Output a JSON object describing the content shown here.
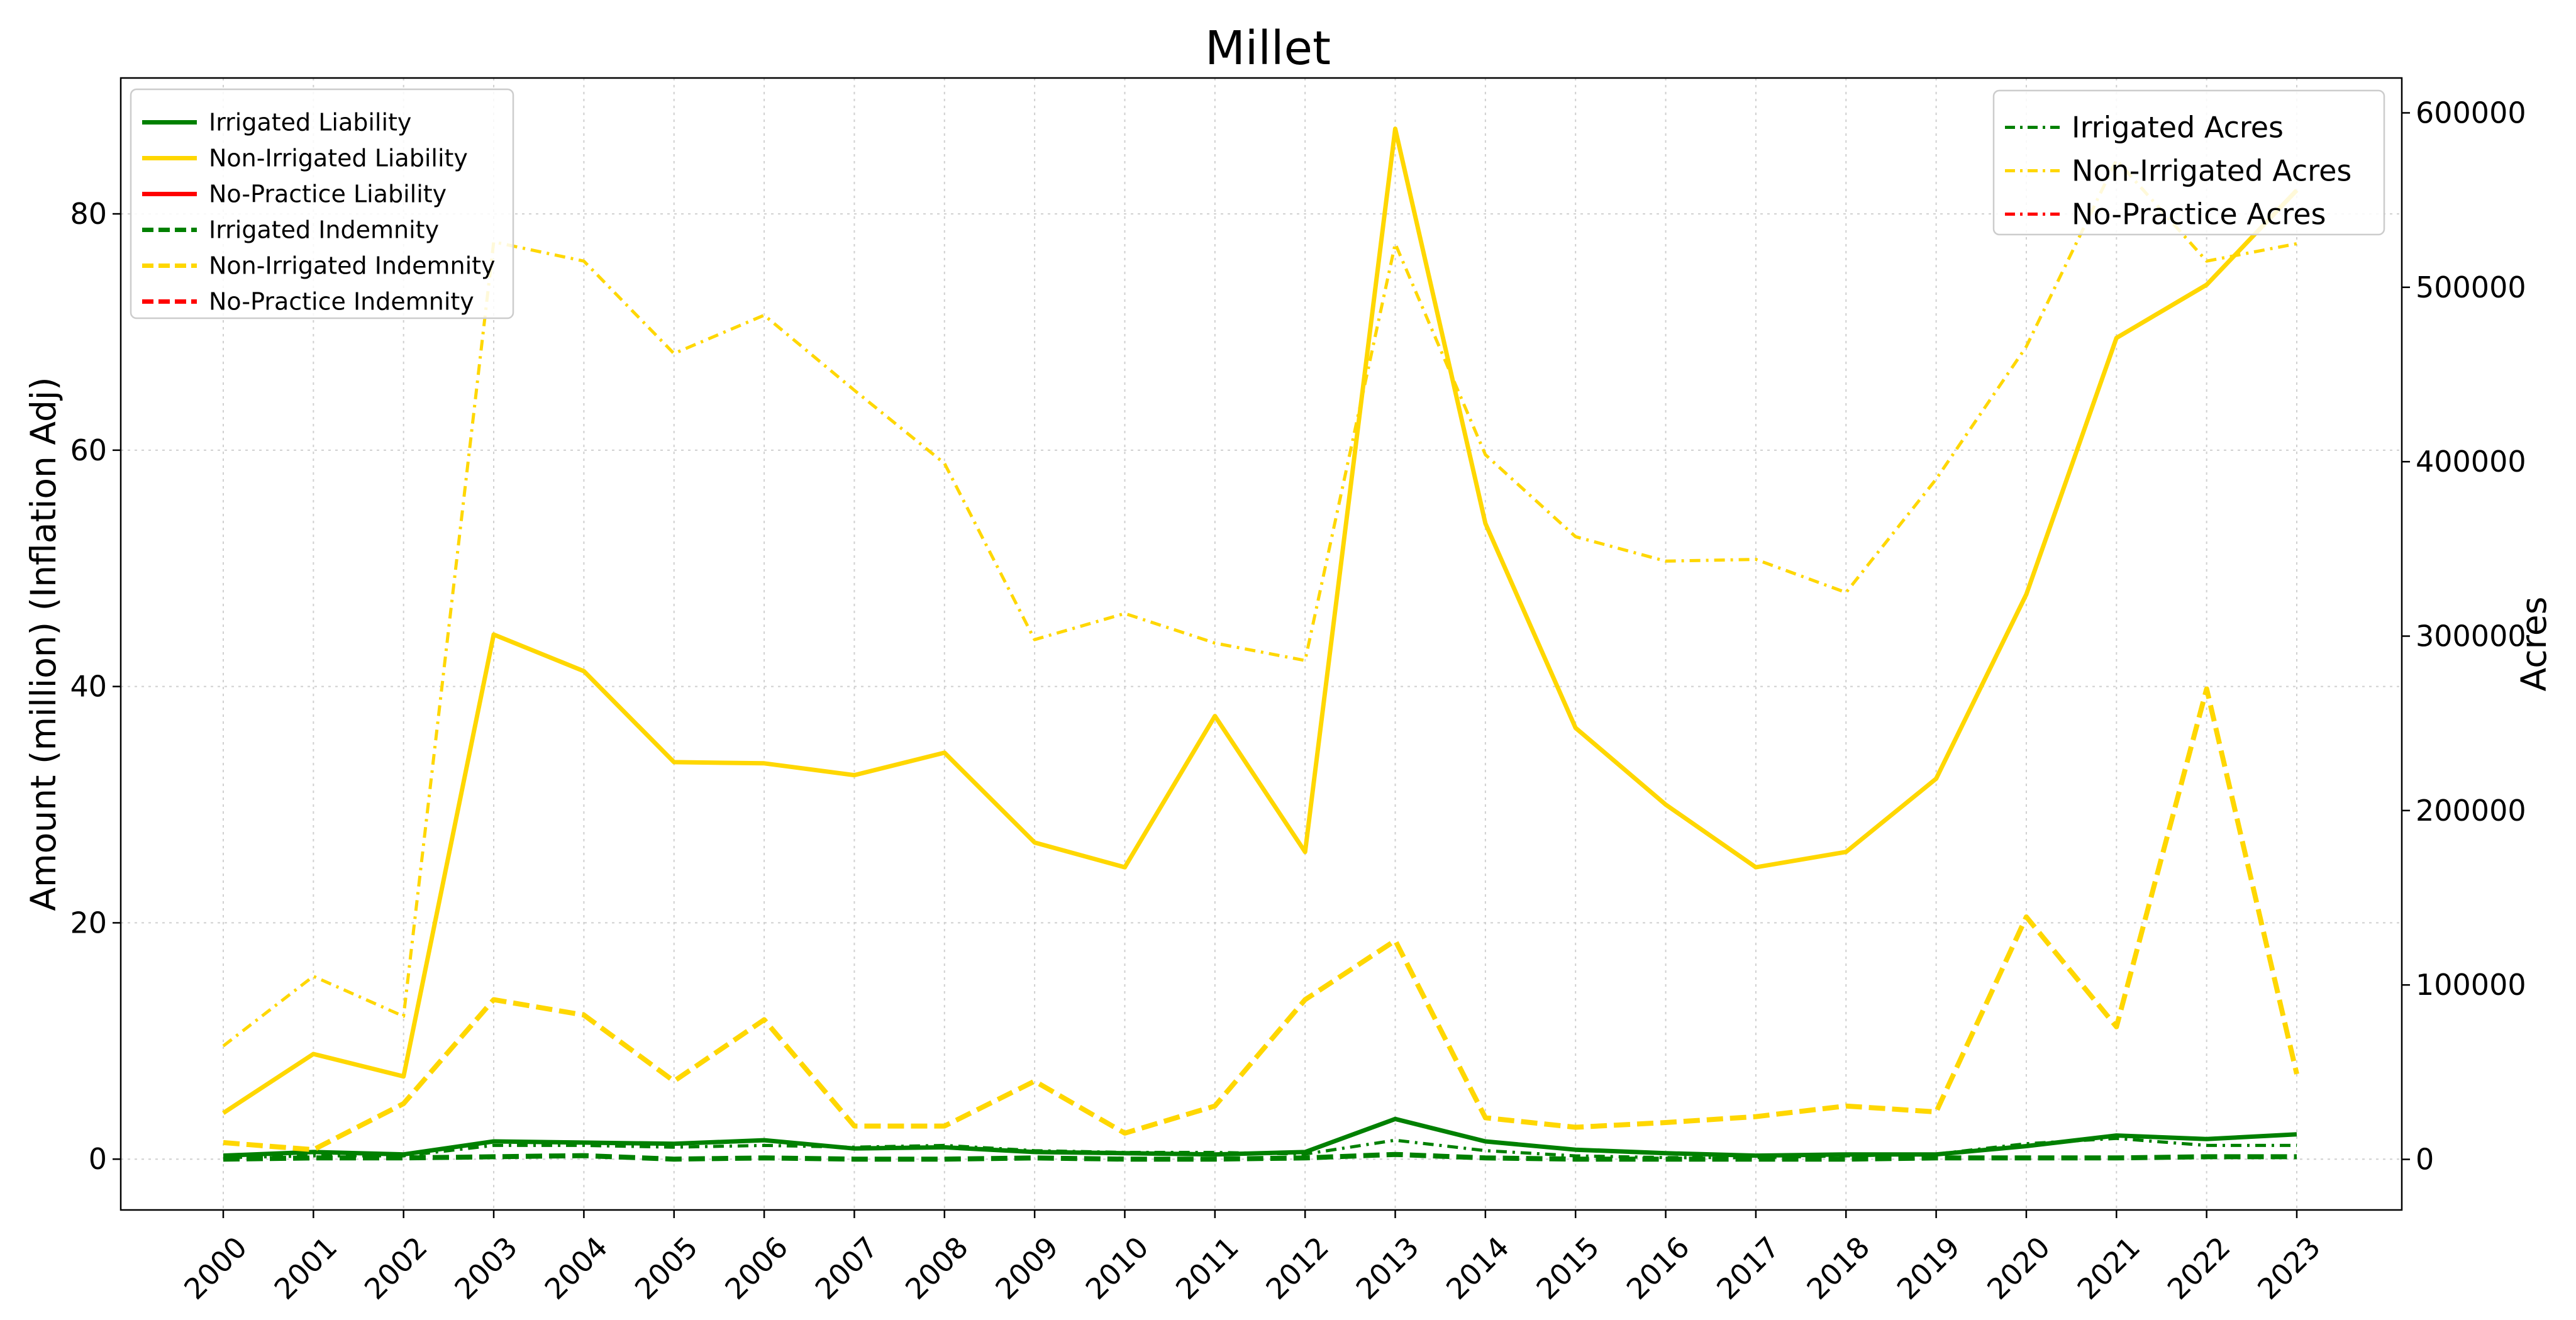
{
  "chart_data": {
    "type": "line",
    "title": "Millet",
    "xlabel": "",
    "ylabel": "Amount (million) (Inflation Adj)",
    "y2label": "Acres",
    "grid": true,
    "x": [
      "2000",
      "2001",
      "2002",
      "2003",
      "2004",
      "2005",
      "2006",
      "2007",
      "2008",
      "2009",
      "2010",
      "2011",
      "2012",
      "2013",
      "2014",
      "2015",
      "2016",
      "2017",
      "2018",
      "2019",
      "2020",
      "2021",
      "2022",
      "2023"
    ],
    "ylim": [
      -4.3,
      91.5
    ],
    "y_ticks": [
      0,
      20,
      40,
      60,
      80
    ],
    "y2lim": [
      -29000,
      620000
    ],
    "y2_ticks": [
      0,
      100000,
      200000,
      300000,
      400000,
      500000,
      600000
    ],
    "legend_left_position": "top-left",
    "legend_right_position": "top-right",
    "series_left": [
      {
        "name": "Irrigated Liability",
        "color": "#008000",
        "style": "solid",
        "values": [
          0.3,
          0.6,
          0.4,
          1.5,
          1.4,
          1.3,
          1.6,
          0.9,
          1.0,
          0.6,
          0.5,
          0.4,
          0.6,
          3.4,
          1.5,
          0.8,
          0.5,
          0.3,
          0.4,
          0.4,
          1.1,
          2.0,
          1.7,
          2.1
        ]
      },
      {
        "name": "Non-Irrigated Liability",
        "color": "#FFD700",
        "style": "solid",
        "values": [
          3.9,
          8.9,
          7.0,
          44.4,
          41.3,
          33.6,
          33.5,
          32.5,
          34.4,
          26.8,
          24.7,
          37.5,
          26.0,
          87.2,
          53.8,
          36.5,
          30.0,
          24.7,
          26.0,
          32.2,
          47.8,
          69.5,
          74.0,
          82.0
        ]
      },
      {
        "name": "No-Practice Liability",
        "color": "#FF0000",
        "style": "solid",
        "values": []
      },
      {
        "name": "Irrigated Indemnity",
        "color": "#008000",
        "style": "dashed",
        "values": [
          0.0,
          0.1,
          0.1,
          0.2,
          0.3,
          0.0,
          0.1,
          0.0,
          0.0,
          0.1,
          0.0,
          0.0,
          0.1,
          0.4,
          0.1,
          0.0,
          0.0,
          0.0,
          0.0,
          0.1,
          0.1,
          0.1,
          0.2,
          0.2
        ]
      },
      {
        "name": "Non-Irrigated Indemnity",
        "color": "#FFD700",
        "style": "dashed",
        "values": [
          1.4,
          0.8,
          4.7,
          13.5,
          12.2,
          6.6,
          11.8,
          2.8,
          2.8,
          6.6,
          2.2,
          4.5,
          13.5,
          18.5,
          3.5,
          2.7,
          3.1,
          3.6,
          4.5,
          4.0,
          20.5,
          11.2,
          39.8,
          7.2
        ]
      },
      {
        "name": "No-Practice Indemnity",
        "color": "#FF0000",
        "style": "dashed",
        "values": []
      }
    ],
    "series_right": [
      {
        "name": "Irrigated Acres",
        "color": "#008000",
        "style": "dashdot",
        "values": [
          1000,
          2000,
          2000,
          8000,
          8000,
          7000,
          8000,
          7000,
          8000,
          5000,
          4000,
          4000,
          3000,
          11000,
          5000,
          2000,
          1000,
          1000,
          2000,
          3000,
          9000,
          12000,
          8000,
          8000
        ]
      },
      {
        "name": "Non-Irrigated Acres",
        "color": "#FFD700",
        "style": "dashdot",
        "values": [
          65000,
          105000,
          82000,
          526000,
          515000,
          462000,
          484000,
          441000,
          399000,
          298000,
          313000,
          296000,
          286000,
          525000,
          404000,
          357000,
          343000,
          344000,
          325000,
          390000,
          466000,
          573000,
          515000,
          525000
        ]
      },
      {
        "name": "No-Practice Acres",
        "color": "#FF0000",
        "style": "dashdot",
        "values": []
      }
    ]
  }
}
